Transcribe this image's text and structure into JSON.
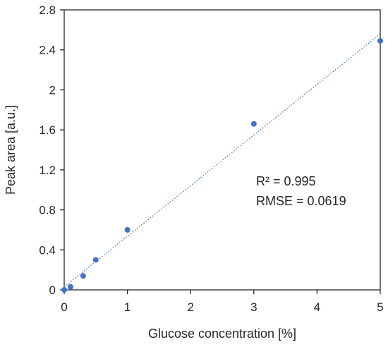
{
  "chart_data": {
    "type": "scatter",
    "title": "",
    "xlabel": "Glucose concentration [%]",
    "ylabel": "Peak area [a.u.]",
    "xlim": [
      0,
      5
    ],
    "ylim": [
      0,
      2.8
    ],
    "x_ticks": [
      "0",
      "1",
      "2",
      "3",
      "4",
      "5"
    ],
    "y_ticks": [
      "0",
      "0.4",
      "0.8",
      "1.2",
      "1.6",
      "2",
      "2.4",
      "2.8"
    ],
    "grid": false,
    "color": "#4472c4",
    "series": [
      {
        "x": [
          0,
          0.1,
          0.3,
          0.5,
          1,
          3,
          5
        ],
        "y": [
          0.0,
          0.03,
          0.14,
          0.3,
          0.6,
          1.66,
          2.49
        ]
      }
    ],
    "trendline": {
      "style": "dotted linear fit",
      "x": [
        0,
        5
      ],
      "y": [
        0.03,
        2.56
      ]
    },
    "annotations": {
      "r_squared": "R² = 0.995",
      "rmse": "RMSE = 0.0619"
    }
  }
}
